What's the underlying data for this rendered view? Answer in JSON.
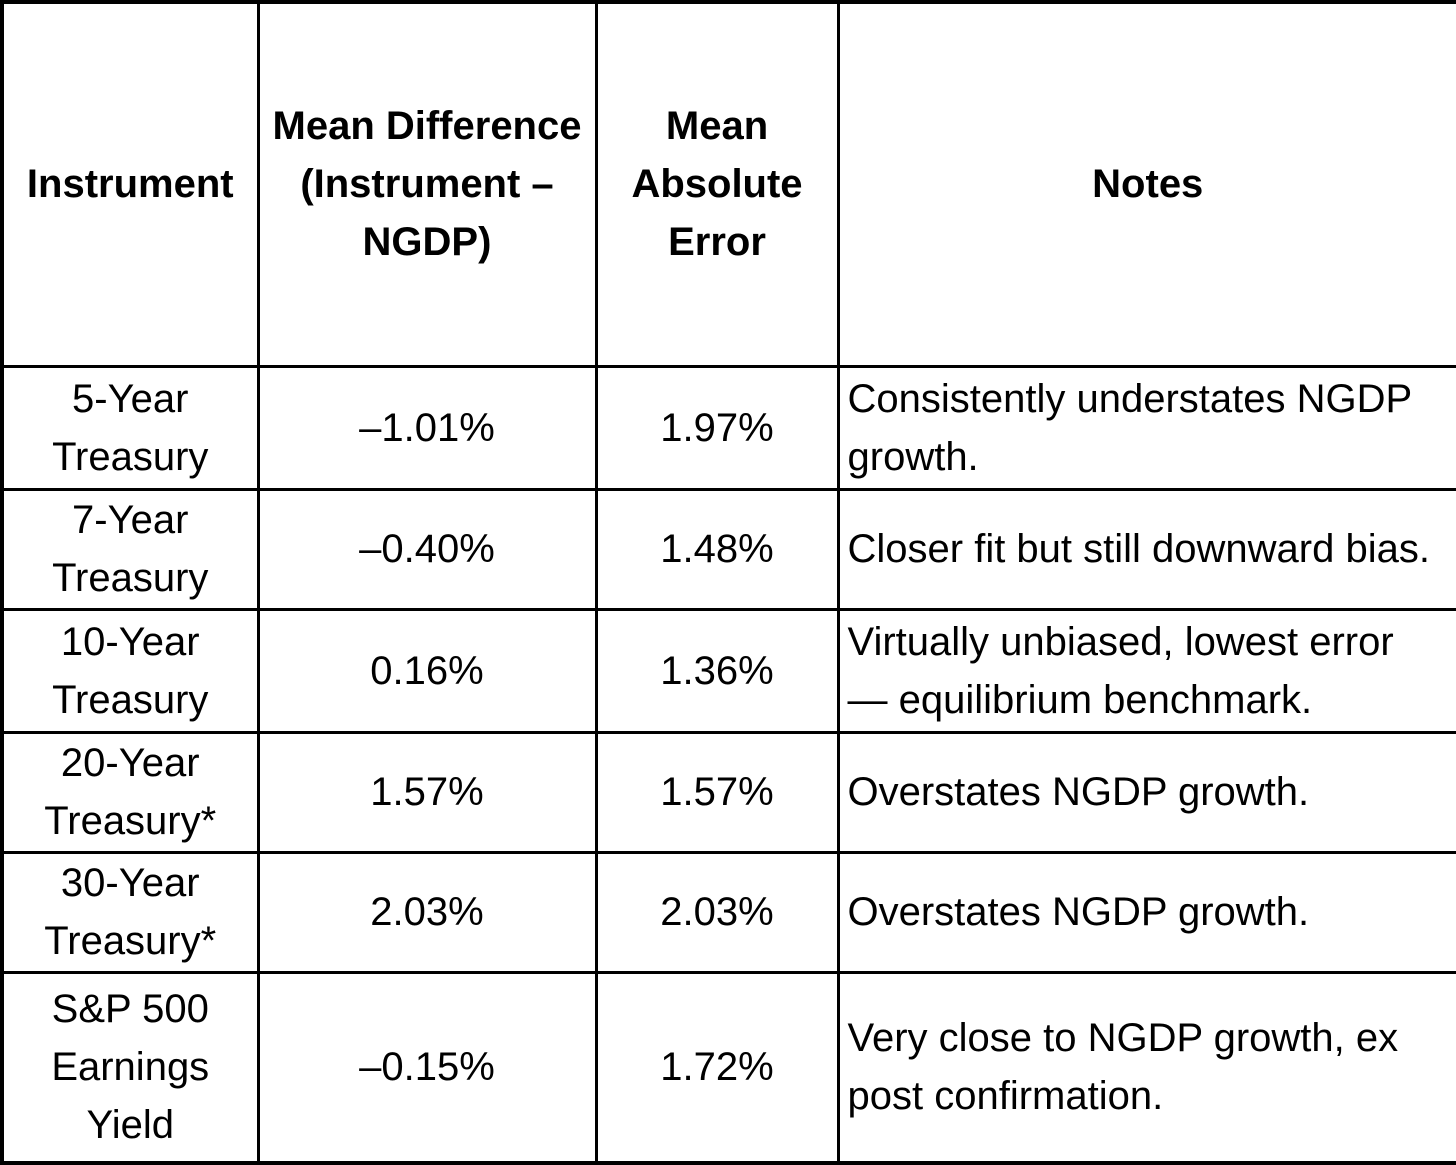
{
  "colors": {
    "border": "#000000",
    "text": "#000000",
    "background": "#ffffff"
  },
  "table": {
    "columns": [
      {
        "key": "instrument",
        "label": "Instrument"
      },
      {
        "key": "mean_difference",
        "label": "Mean Difference (Instrument – NGDP)"
      },
      {
        "key": "mean_absolute_error",
        "label": "Mean Absolute Error"
      },
      {
        "key": "notes",
        "label": "Notes"
      }
    ],
    "rows": [
      {
        "instrument": "5-Year Treasury",
        "mean_difference": "–1.01%",
        "mean_absolute_error": "1.97%",
        "notes": "Consistently understates NGDP growth."
      },
      {
        "instrument": "7-Year Treasury",
        "mean_difference": "–0.40%",
        "mean_absolute_error": "1.48%",
        "notes": "Closer fit but still downward bias."
      },
      {
        "instrument": "10-Year Treasury",
        "mean_difference": "0.16%",
        "mean_absolute_error": "1.36%",
        "notes": "Virtually unbiased, lowest error — equilibrium benchmark."
      },
      {
        "instrument": "20-Year Treasury*",
        "mean_difference": "1.57%",
        "mean_absolute_error": "1.57%",
        "notes": "Overstates NGDP growth."
      },
      {
        "instrument": "30-Year Treasury*",
        "mean_difference": "2.03%",
        "mean_absolute_error": "2.03%",
        "notes": "Overstates NGDP growth."
      },
      {
        "instrument": "S&P 500 Earnings Yield",
        "mean_difference": "–0.15%",
        "mean_absolute_error": "1.72%",
        "notes": "Very close to NGDP growth, ex post confirmation."
      }
    ]
  }
}
